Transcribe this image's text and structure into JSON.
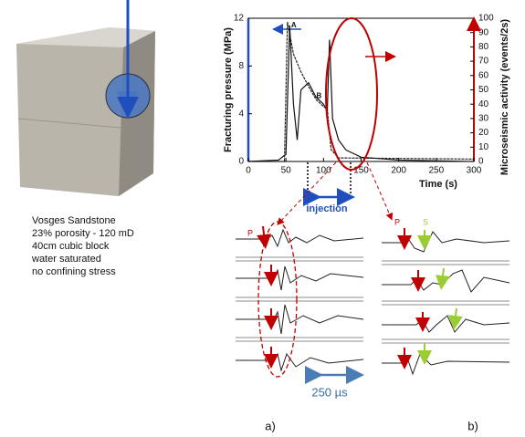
{
  "chart_data": {
    "type": "line",
    "xlabel": "Time (s)",
    "ylabel": "Fracturing pressure (MPa)",
    "y2label": "Microseismic activity (events/2s)",
    "xlim": [
      0,
      300
    ],
    "xticks": [
      0,
      50,
      100,
      150,
      200,
      250,
      300
    ],
    "ylim": [
      0,
      12
    ],
    "yticks": [
      0,
      4,
      8,
      12
    ],
    "y2lim": [
      0,
      100
    ],
    "y2ticks": [
      0,
      10,
      20,
      30,
      40,
      50,
      60,
      70,
      80,
      90,
      100
    ],
    "annotations": [
      "A",
      "B"
    ],
    "series": [
      {
        "color": "#222222",
        "x": [
          0,
          48,
          52,
          60,
          70,
          80,
          90,
          100,
          105,
          110,
          120,
          300
        ],
        "values": [
          0,
          0,
          11.7,
          9,
          7.5,
          6.3,
          5.2,
          4.6,
          4.4,
          1,
          0.3,
          0.2
        ]
      },
      {
        "color": "#111111",
        "axis": "y2",
        "x": [
          0,
          40,
          50,
          55,
          60,
          65,
          70,
          80,
          90,
          100,
          105,
          108,
          112,
          120,
          130,
          150,
          200,
          300
        ],
        "values": [
          0,
          1,
          5,
          95,
          40,
          15,
          50,
          55,
          45,
          40,
          35,
          85,
          30,
          15,
          8,
          3,
          1,
          0
        ]
      }
    ]
  },
  "figure": {
    "injection": "injection",
    "scale": "250 µs",
    "panel_a": "a)",
    "panel_b": "b)",
    "wave_a_p": "P",
    "wave_b_p": "P",
    "wave_b_s": "S",
    "description": [
      "Vosges Sandstone",
      "23% porosity - 120 mD",
      "40cm cubic block",
      "water saturated",
      "no confining  stress"
    ]
  }
}
